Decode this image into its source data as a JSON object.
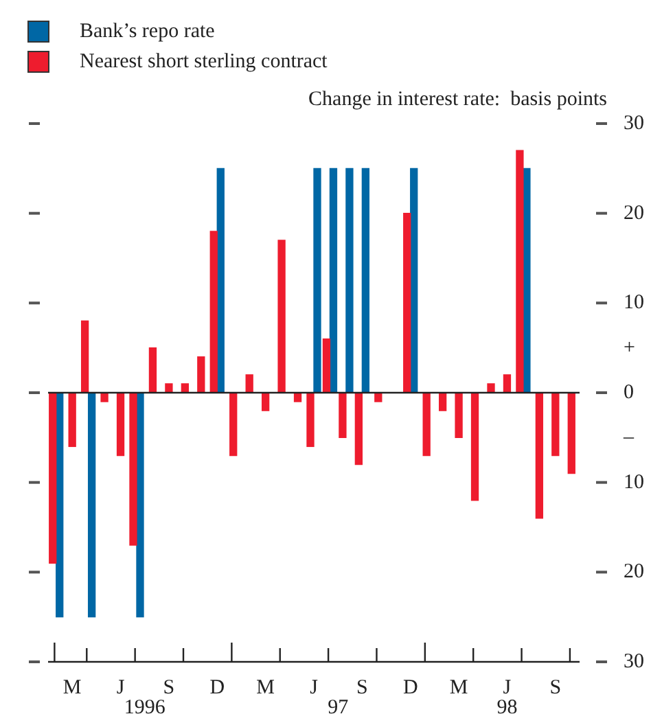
{
  "chart_data": {
    "type": "bar",
    "ylabel": "Change in interest rate:  basis points",
    "legend": "top left",
    "categories": [
      null,
      "M",
      null,
      null,
      "J",
      null,
      null,
      "S",
      null,
      null,
      "D",
      null,
      null,
      "M",
      null,
      null,
      "J",
      null,
      null,
      "S",
      null,
      null,
      "D",
      null,
      null,
      "M",
      null,
      null,
      "J",
      null,
      null,
      "S",
      null
    ],
    "series": [
      {
        "name": "Nearest short sterling contract",
        "color": "#ee1c2e",
        "values": [
          -19,
          -6,
          8,
          -1,
          -7,
          -17,
          5,
          1,
          1,
          4,
          18,
          -7,
          2,
          -2,
          17,
          -1,
          -6,
          6,
          -5,
          -8,
          -1,
          null,
          20,
          -7,
          -2,
          -5,
          -12,
          1,
          2,
          27,
          -14,
          -7,
          -9
        ]
      },
      {
        "name": "Bank’s repo rate",
        "color": "#0067a5",
        "values": [
          -25,
          null,
          -25,
          null,
          null,
          -25,
          null,
          null,
          null,
          null,
          25,
          null,
          null,
          null,
          null,
          null,
          25,
          25,
          25,
          25,
          null,
          null,
          25,
          null,
          null,
          null,
          null,
          null,
          null,
          25,
          null,
          null,
          null
        ]
      }
    ],
    "ylim": [
      -30,
      30
    ],
    "yticks": [
      {
        "value": -30,
        "label": "30"
      },
      {
        "value": -20,
        "label": "20"
      },
      {
        "value": -10,
        "label": "10"
      },
      {
        "value": -5,
        "label": "–"
      },
      0,
      {
        "value": 5,
        "label": "+"
      },
      10,
      20,
      30
    ],
    "annotations": [
      "1996",
      "97",
      "98"
    ]
  }
}
